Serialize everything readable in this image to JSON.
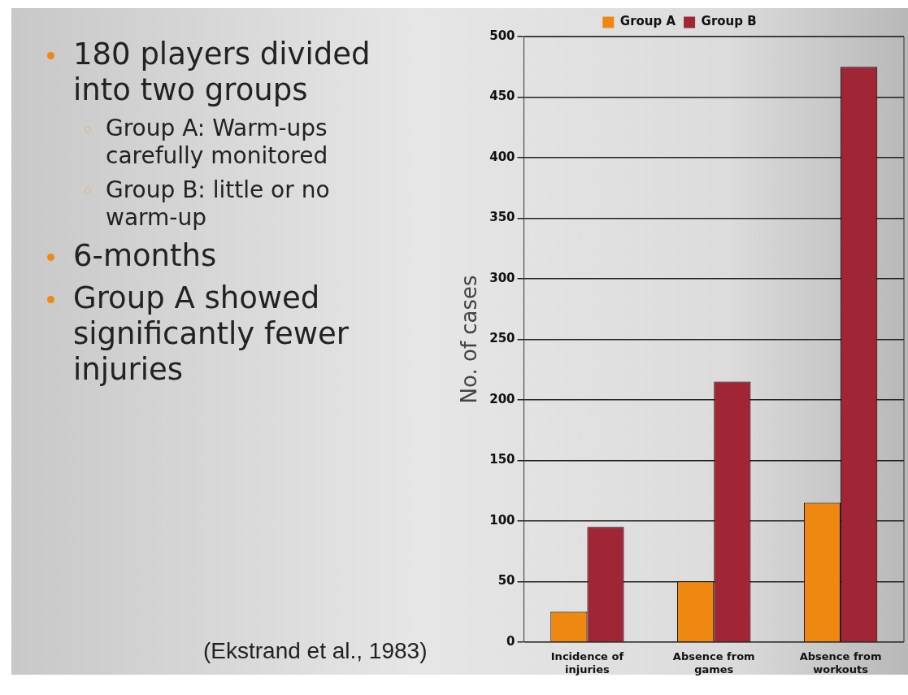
{
  "chart_data": {
    "type": "bar",
    "ylabel": "No. of cases",
    "categories": [
      "Incidence of injuries",
      "Absence from games",
      "Absence from workouts"
    ],
    "series": [
      {
        "name": "Group A",
        "color": "#ee8811",
        "values": [
          25,
          50,
          115
        ]
      },
      {
        "name": "Group B",
        "color": "#a02535",
        "values": [
          95,
          215,
          475
        ]
      }
    ],
    "ylim": [
      0,
      500
    ],
    "yticks": [
      0,
      50,
      100,
      150,
      200,
      250,
      300,
      350,
      400,
      450,
      500
    ],
    "grid": "y",
    "legend": "top",
    "annotations": [
      "180 players divided into two groups",
      "Group A: Warm-ups carefully monitored",
      "Group B: little or no warm-up",
      "6-months",
      "Group A showed significantly fewer injuries",
      "(Ekstrand et al., 1983)"
    ]
  }
}
